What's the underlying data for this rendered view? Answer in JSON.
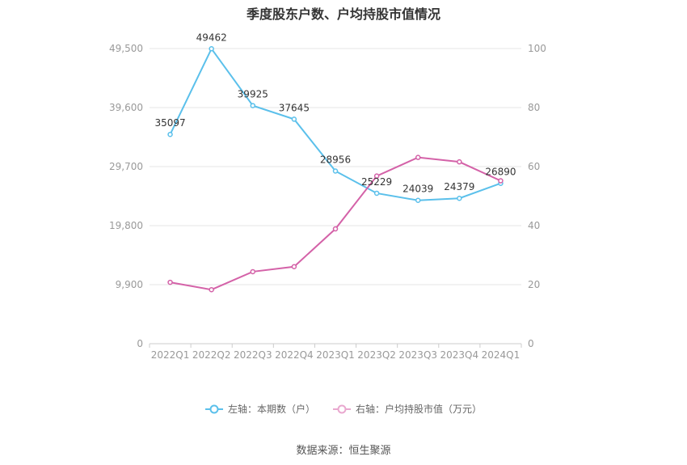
{
  "chart_data": {
    "type": "line",
    "title": "季度股东户数、户均持股市值情况",
    "categories": [
      "2022Q1",
      "2022Q2",
      "2022Q3",
      "2022Q4",
      "2023Q1",
      "2023Q2",
      "2023Q3",
      "2023Q4",
      "2024Q1"
    ],
    "left_axis": {
      "ylim": [
        0,
        49500
      ],
      "ticks": [
        0,
        9900,
        19800,
        29700,
        39600,
        49500
      ],
      "tick_labels": [
        "0",
        "9,900",
        "19,800",
        "29,700",
        "39,600",
        "49,500"
      ]
    },
    "right_axis": {
      "ylim": [
        0,
        100
      ],
      "ticks": [
        0,
        20,
        40,
        60,
        80,
        100
      ],
      "tick_labels": [
        "0",
        "20",
        "40",
        "60",
        "80",
        "100"
      ]
    },
    "series": [
      {
        "name": "左轴：本期数（户）",
        "axis": "left",
        "color": "#5bc0eb",
        "values": [
          35097,
          49462,
          39925,
          37645,
          28956,
          25229,
          24039,
          24379,
          26890
        ],
        "labels": [
          "35097",
          "49462",
          "39925",
          "37645",
          "28956",
          "25229",
          "24039",
          "24379",
          "26890"
        ]
      },
      {
        "name": "右轴：户均持股市值（万元）",
        "axis": "right",
        "color": "#d462a8",
        "values": [
          20.8,
          18.3,
          24.4,
          26.1,
          38.9,
          56.8,
          63.1,
          61.6,
          55.2
        ]
      }
    ],
    "grid": true,
    "legend_position": "bottom"
  },
  "legend": {
    "left_label": "左轴：本期数（户）",
    "right_label": "右轴：户均持股市值（万元）",
    "left_color": "#5bc0eb",
    "right_color": "#e9a8cf"
  },
  "source": "数据来源：恒生聚源"
}
